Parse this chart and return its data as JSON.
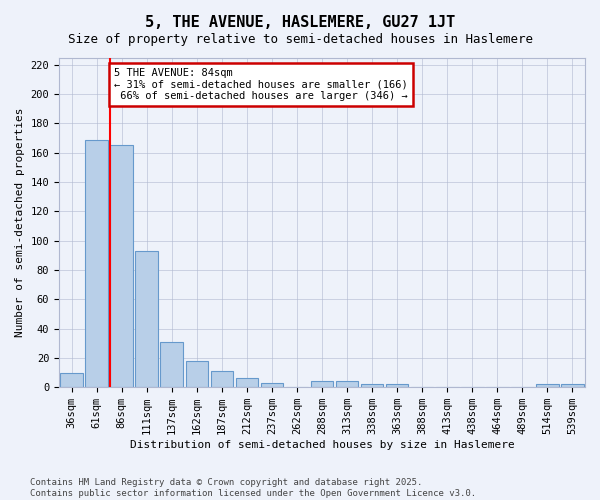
{
  "title": "5, THE AVENUE, HASLEMERE, GU27 1JT",
  "subtitle": "Size of property relative to semi-detached houses in Haslemere",
  "xlabel": "Distribution of semi-detached houses by size in Haslemere",
  "ylabel": "Number of semi-detached properties",
  "categories": [
    "36sqm",
    "61sqm",
    "86sqm",
    "111sqm",
    "137sqm",
    "162sqm",
    "187sqm",
    "212sqm",
    "237sqm",
    "262sqm",
    "288sqm",
    "313sqm",
    "338sqm",
    "363sqm",
    "388sqm",
    "413sqm",
    "438sqm",
    "464sqm",
    "489sqm",
    "514sqm",
    "539sqm"
  ],
  "values": [
    10,
    169,
    165,
    93,
    31,
    18,
    11,
    6,
    3,
    0,
    4,
    4,
    2,
    2,
    0,
    0,
    0,
    0,
    0,
    2,
    2
  ],
  "bar_color": "#b8cfe8",
  "bar_edge_color": "#6699cc",
  "red_line_index": 2,
  "property_label": "5 THE AVENUE: 84sqm",
  "pct_smaller": 31,
  "pct_smaller_n": 166,
  "pct_larger": 66,
  "pct_larger_n": 346,
  "annotation_box_color": "#ffffff",
  "annotation_box_edge": "#cc0000",
  "ylim": [
    0,
    225
  ],
  "yticks": [
    0,
    20,
    40,
    60,
    80,
    100,
    120,
    140,
    160,
    180,
    200,
    220
  ],
  "footnote": "Contains HM Land Registry data © Crown copyright and database right 2025.\nContains public sector information licensed under the Open Government Licence v3.0.",
  "bg_color": "#eef2fa",
  "grid_color": "#b0b8d0",
  "title_fontsize": 11,
  "subtitle_fontsize": 9,
  "axis_label_fontsize": 8,
  "tick_fontsize": 7.5,
  "annotation_fontsize": 7.5,
  "footnote_fontsize": 6.5
}
